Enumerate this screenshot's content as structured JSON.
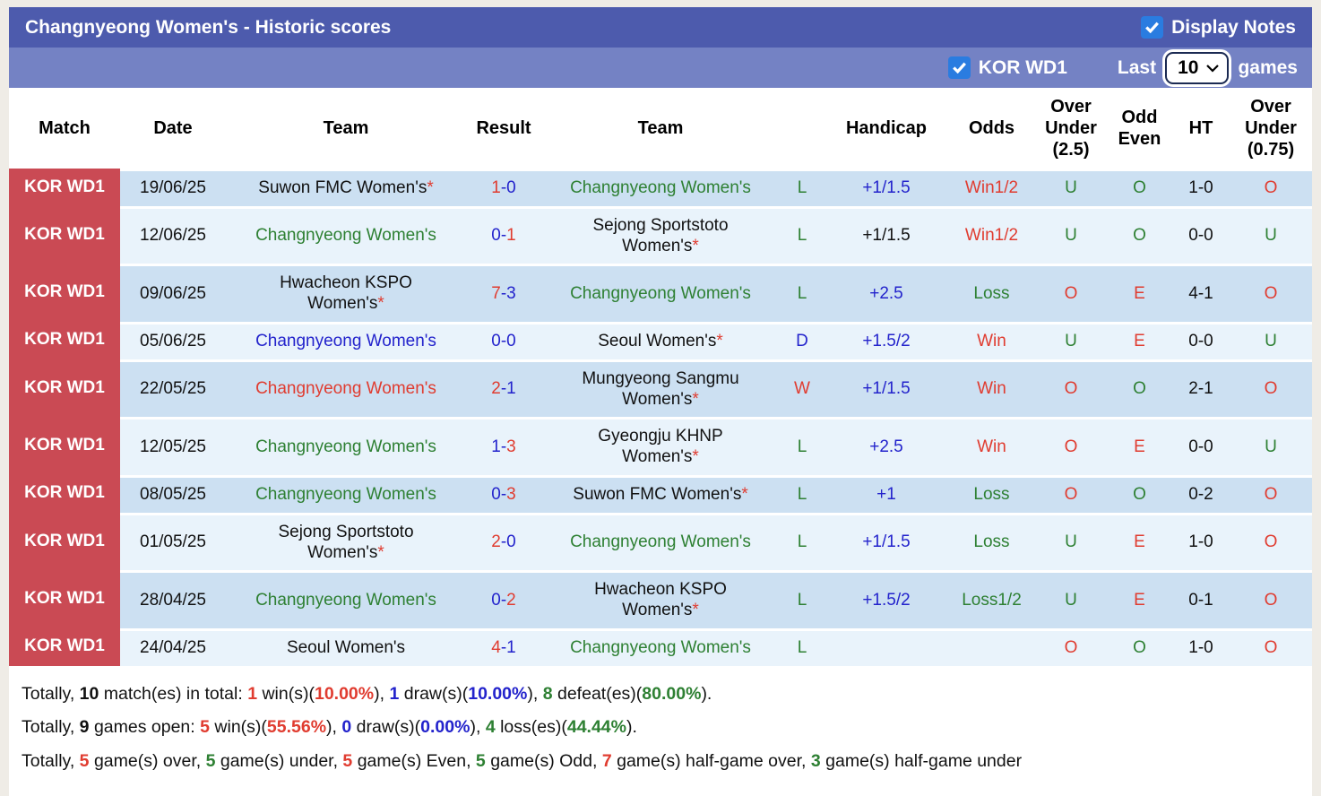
{
  "colors": {
    "accent_header": "#4d5bad",
    "accent_subheader": "#7482c4",
    "checkbox_blue": "#2a7ce0",
    "badge_red": "#ca4a54",
    "stripe_dark": "#cce0f2",
    "stripe_light": "#e9f3fb",
    "text_red": "#e03c30",
    "text_blue": "#2323cc",
    "text_green": "#2e8033"
  },
  "title_bar": {
    "title": "Changnyeong Women's - Historic scores",
    "display_notes_label": "Display Notes",
    "display_notes_checked": true
  },
  "filter_bar": {
    "league_label": "KOR WD1",
    "league_checked": true,
    "last_label": "Last",
    "selected_count": "10",
    "games_label": "games"
  },
  "table": {
    "headers": {
      "match": "Match",
      "date": "Date",
      "team_home": "Team",
      "result": "Result",
      "team_away": "Team",
      "outcome": "",
      "handicap": "Handicap",
      "odds": "Odds",
      "over_under_25": "Over\nUnder\n(2.5)",
      "odd_even": "Odd\nEven",
      "ht": "HT",
      "over_under_075": "Over\nUnder\n(0.75)"
    },
    "rows": [
      {
        "league": "KOR WD1",
        "date": "19/06/25",
        "home": {
          "name": "Suwon FMC Women's",
          "asterisk": true,
          "color": "black"
        },
        "score": {
          "home": "1",
          "home_color": "red",
          "away": "0",
          "away_color": "blue"
        },
        "away": {
          "name": "Changnyeong Women's",
          "asterisk": false,
          "color": "green"
        },
        "outcome": {
          "text": "L",
          "color": "green"
        },
        "handicap": {
          "text": "+1/1.5",
          "color": "blue"
        },
        "odds": {
          "text": "Win1/2",
          "color": "red"
        },
        "ou25": {
          "text": "U",
          "color": "green"
        },
        "odd_even": {
          "text": "O",
          "color": "green"
        },
        "ht": "1-0",
        "ou075": {
          "text": "O",
          "color": "red"
        }
      },
      {
        "league": "KOR WD1",
        "date": "12/06/25",
        "home": {
          "name": "Changnyeong Women's",
          "asterisk": false,
          "color": "green"
        },
        "score": {
          "home": "0",
          "home_color": "blue",
          "away": "1",
          "away_color": "red"
        },
        "away": {
          "name": "Sejong Sportstoto\nWomen's",
          "asterisk": true,
          "color": "black"
        },
        "outcome": {
          "text": "L",
          "color": "green"
        },
        "handicap": {
          "text": "+1/1.5",
          "color": "black"
        },
        "odds": {
          "text": "Win1/2",
          "color": "red"
        },
        "ou25": {
          "text": "U",
          "color": "green"
        },
        "odd_even": {
          "text": "O",
          "color": "green"
        },
        "ht": "0-0",
        "ou075": {
          "text": "U",
          "color": "green"
        }
      },
      {
        "league": "KOR WD1",
        "date": "09/06/25",
        "home": {
          "name": "Hwacheon KSPO\nWomen's",
          "asterisk": true,
          "color": "black"
        },
        "score": {
          "home": "7",
          "home_color": "red",
          "away": "3",
          "away_color": "blue"
        },
        "away": {
          "name": "Changnyeong Women's",
          "asterisk": false,
          "color": "green"
        },
        "outcome": {
          "text": "L",
          "color": "green"
        },
        "handicap": {
          "text": "+2.5",
          "color": "blue"
        },
        "odds": {
          "text": "Loss",
          "color": "green"
        },
        "ou25": {
          "text": "O",
          "color": "red"
        },
        "odd_even": {
          "text": "E",
          "color": "red"
        },
        "ht": "4-1",
        "ou075": {
          "text": "O",
          "color": "red"
        }
      },
      {
        "league": "KOR WD1",
        "date": "05/06/25",
        "home": {
          "name": "Changnyeong Women's",
          "asterisk": false,
          "color": "blue"
        },
        "score": {
          "home": "0",
          "home_color": "blue",
          "away": "0",
          "away_color": "blue"
        },
        "away": {
          "name": "Seoul Women's",
          "asterisk": true,
          "color": "black"
        },
        "outcome": {
          "text": "D",
          "color": "blue"
        },
        "handicap": {
          "text": "+1.5/2",
          "color": "blue"
        },
        "odds": {
          "text": "Win",
          "color": "red"
        },
        "ou25": {
          "text": "U",
          "color": "green"
        },
        "odd_even": {
          "text": "E",
          "color": "red"
        },
        "ht": "0-0",
        "ou075": {
          "text": "U",
          "color": "green"
        }
      },
      {
        "league": "KOR WD1",
        "date": "22/05/25",
        "home": {
          "name": "Changnyeong Women's",
          "asterisk": false,
          "color": "red"
        },
        "score": {
          "home": "2",
          "home_color": "red",
          "away": "1",
          "away_color": "blue"
        },
        "away": {
          "name": "Mungyeong Sangmu\nWomen's",
          "asterisk": true,
          "color": "black"
        },
        "outcome": {
          "text": "W",
          "color": "red"
        },
        "handicap": {
          "text": "+1/1.5",
          "color": "blue"
        },
        "odds": {
          "text": "Win",
          "color": "red"
        },
        "ou25": {
          "text": "O",
          "color": "red"
        },
        "odd_even": {
          "text": "O",
          "color": "green"
        },
        "ht": "2-1",
        "ou075": {
          "text": "O",
          "color": "red"
        }
      },
      {
        "league": "KOR WD1",
        "date": "12/05/25",
        "home": {
          "name": "Changnyeong Women's",
          "asterisk": false,
          "color": "green"
        },
        "score": {
          "home": "1",
          "home_color": "blue",
          "away": "3",
          "away_color": "red"
        },
        "away": {
          "name": "Gyeongju KHNP\nWomen's",
          "asterisk": true,
          "color": "black"
        },
        "outcome": {
          "text": "L",
          "color": "green"
        },
        "handicap": {
          "text": "+2.5",
          "color": "blue"
        },
        "odds": {
          "text": "Win",
          "color": "red"
        },
        "ou25": {
          "text": "O",
          "color": "red"
        },
        "odd_even": {
          "text": "E",
          "color": "red"
        },
        "ht": "0-0",
        "ou075": {
          "text": "U",
          "color": "green"
        }
      },
      {
        "league": "KOR WD1",
        "date": "08/05/25",
        "home": {
          "name": "Changnyeong Women's",
          "asterisk": false,
          "color": "green"
        },
        "score": {
          "home": "0",
          "home_color": "blue",
          "away": "3",
          "away_color": "red"
        },
        "away": {
          "name": "Suwon FMC Women's",
          "asterisk": true,
          "color": "black"
        },
        "outcome": {
          "text": "L",
          "color": "green"
        },
        "handicap": {
          "text": "+1",
          "color": "blue"
        },
        "odds": {
          "text": "Loss",
          "color": "green"
        },
        "ou25": {
          "text": "O",
          "color": "red"
        },
        "odd_even": {
          "text": "O",
          "color": "green"
        },
        "ht": "0-2",
        "ou075": {
          "text": "O",
          "color": "red"
        }
      },
      {
        "league": "KOR WD1",
        "date": "01/05/25",
        "home": {
          "name": "Sejong Sportstoto\nWomen's",
          "asterisk": true,
          "color": "black"
        },
        "score": {
          "home": "2",
          "home_color": "red",
          "away": "0",
          "away_color": "blue"
        },
        "away": {
          "name": "Changnyeong Women's",
          "asterisk": false,
          "color": "green"
        },
        "outcome": {
          "text": "L",
          "color": "green"
        },
        "handicap": {
          "text": "+1/1.5",
          "color": "blue"
        },
        "odds": {
          "text": "Loss",
          "color": "green"
        },
        "ou25": {
          "text": "U",
          "color": "green"
        },
        "odd_even": {
          "text": "E",
          "color": "red"
        },
        "ht": "1-0",
        "ou075": {
          "text": "O",
          "color": "red"
        }
      },
      {
        "league": "KOR WD1",
        "date": "28/04/25",
        "home": {
          "name": "Changnyeong Women's",
          "asterisk": false,
          "color": "green"
        },
        "score": {
          "home": "0",
          "home_color": "blue",
          "away": "2",
          "away_color": "red"
        },
        "away": {
          "name": "Hwacheon KSPO\nWomen's",
          "asterisk": true,
          "color": "black"
        },
        "outcome": {
          "text": "L",
          "color": "green"
        },
        "handicap": {
          "text": "+1.5/2",
          "color": "blue"
        },
        "odds": {
          "text": "Loss1/2",
          "color": "green"
        },
        "ou25": {
          "text": "U",
          "color": "green"
        },
        "odd_even": {
          "text": "E",
          "color": "red"
        },
        "ht": "0-1",
        "ou075": {
          "text": "O",
          "color": "red"
        }
      },
      {
        "league": "KOR WD1",
        "date": "24/04/25",
        "home": {
          "name": "Seoul Women's",
          "asterisk": false,
          "color": "black"
        },
        "score": {
          "home": "4",
          "home_color": "red",
          "away": "1",
          "away_color": "blue"
        },
        "away": {
          "name": "Changnyeong Women's",
          "asterisk": false,
          "color": "green"
        },
        "outcome": {
          "text": "L",
          "color": "green"
        },
        "handicap": {
          "text": "",
          "color": "black"
        },
        "odds": {
          "text": "",
          "color": "black"
        },
        "ou25": {
          "text": "O",
          "color": "red"
        },
        "odd_even": {
          "text": "O",
          "color": "green"
        },
        "ht": "1-0",
        "ou075": {
          "text": "O",
          "color": "red"
        }
      }
    ]
  },
  "summary": {
    "lines": [
      [
        {
          "t": "Totally, ",
          "c": "black",
          "b": false
        },
        {
          "t": "10",
          "c": "black",
          "b": true
        },
        {
          "t": " match(es) in total: ",
          "c": "black",
          "b": false
        },
        {
          "t": "1",
          "c": "red",
          "b": true
        },
        {
          "t": " win(s)(",
          "c": "black",
          "b": false
        },
        {
          "t": "10.00%",
          "c": "red",
          "b": true
        },
        {
          "t": "), ",
          "c": "black",
          "b": false
        },
        {
          "t": "1",
          "c": "blue",
          "b": true
        },
        {
          "t": " draw(s)(",
          "c": "black",
          "b": false
        },
        {
          "t": "10.00%",
          "c": "blue",
          "b": true
        },
        {
          "t": "), ",
          "c": "black",
          "b": false
        },
        {
          "t": "8",
          "c": "green",
          "b": true
        },
        {
          "t": " defeat(es)(",
          "c": "black",
          "b": false
        },
        {
          "t": "80.00%",
          "c": "green",
          "b": true
        },
        {
          "t": ").",
          "c": "black",
          "b": false
        }
      ],
      [
        {
          "t": "Totally, ",
          "c": "black",
          "b": false
        },
        {
          "t": "9",
          "c": "black",
          "b": true
        },
        {
          "t": " games open: ",
          "c": "black",
          "b": false
        },
        {
          "t": "5",
          "c": "red",
          "b": true
        },
        {
          "t": " win(s)(",
          "c": "black",
          "b": false
        },
        {
          "t": "55.56%",
          "c": "red",
          "b": true
        },
        {
          "t": "), ",
          "c": "black",
          "b": false
        },
        {
          "t": "0",
          "c": "blue",
          "b": true
        },
        {
          "t": " draw(s)(",
          "c": "black",
          "b": false
        },
        {
          "t": "0.00%",
          "c": "blue",
          "b": true
        },
        {
          "t": "), ",
          "c": "black",
          "b": false
        },
        {
          "t": "4",
          "c": "green",
          "b": true
        },
        {
          "t": " loss(es)(",
          "c": "black",
          "b": false
        },
        {
          "t": "44.44%",
          "c": "green",
          "b": true
        },
        {
          "t": ").",
          "c": "black",
          "b": false
        }
      ],
      [
        {
          "t": "Totally, ",
          "c": "black",
          "b": false
        },
        {
          "t": "5",
          "c": "red",
          "b": true
        },
        {
          "t": " game(s) over, ",
          "c": "black",
          "b": false
        },
        {
          "t": "5",
          "c": "green",
          "b": true
        },
        {
          "t": " game(s) under, ",
          "c": "black",
          "b": false
        },
        {
          "t": "5",
          "c": "red",
          "b": true
        },
        {
          "t": " game(s) Even, ",
          "c": "black",
          "b": false
        },
        {
          "t": "5",
          "c": "green",
          "b": true
        },
        {
          "t": " game(s) Odd, ",
          "c": "black",
          "b": false
        },
        {
          "t": "7",
          "c": "red",
          "b": true
        },
        {
          "t": " game(s) half-game over, ",
          "c": "black",
          "b": false
        },
        {
          "t": "3",
          "c": "green",
          "b": true
        },
        {
          "t": " game(s) half-game under",
          "c": "black",
          "b": false
        }
      ]
    ]
  }
}
